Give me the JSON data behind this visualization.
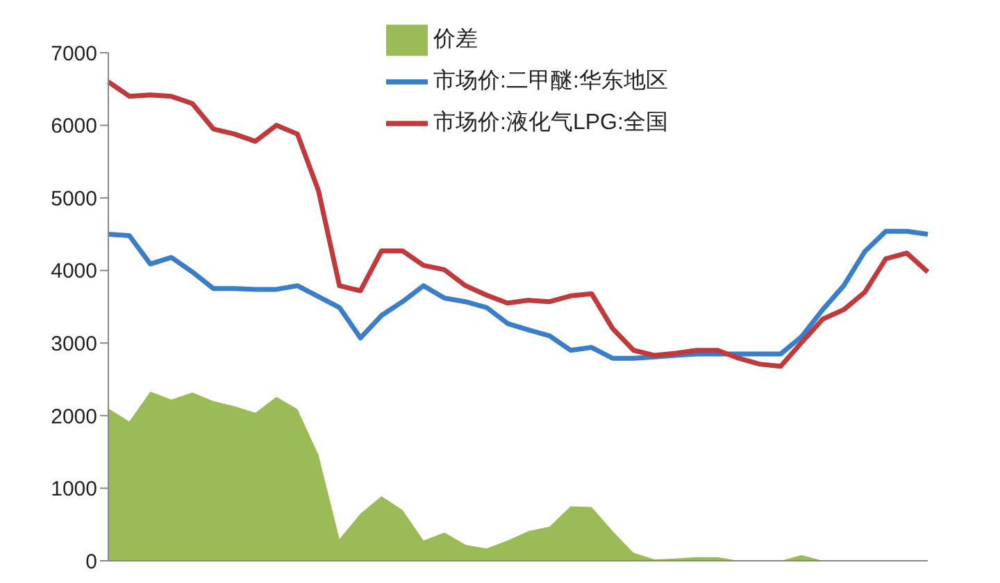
{
  "chart_data": {
    "type": "line",
    "categories": [
      null,
      null,
      null,
      null,
      null,
      null,
      null,
      null,
      null,
      null,
      null,
      null,
      null,
      null,
      null,
      null,
      null,
      null,
      null,
      null,
      null,
      null,
      null,
      null,
      null,
      null,
      null,
      null,
      null,
      null,
      null,
      null,
      null,
      null,
      null,
      null,
      null,
      null,
      null,
      null
    ],
    "series": [
      {
        "name": "价差",
        "type": "area",
        "color": "#9bbb59",
        "values": [
          2100,
          1920,
          2330,
          2220,
          2320,
          2200,
          2130,
          2040,
          2260,
          2090,
          1460,
          300,
          650,
          890,
          700,
          280,
          390,
          220,
          170,
          280,
          410,
          470,
          750,
          740,
          410,
          110,
          20,
          30,
          50,
          50,
          0,
          0,
          0,
          80,
          0,
          0,
          0,
          0,
          0,
          0
        ]
      },
      {
        "name": "市场价:二甲醚:华东地区",
        "color": "#3a7dc9",
        "values": [
          4500,
          4480,
          4090,
          4180,
          3980,
          3750,
          3750,
          3740,
          3740,
          3790,
          3640,
          3490,
          3070,
          3380,
          3570,
          3790,
          3620,
          3570,
          3490,
          3270,
          3180,
          3100,
          2900,
          2940,
          2790,
          2790,
          2810,
          2830,
          2850,
          2850,
          2850,
          2850,
          2850,
          3090,
          3460,
          3790,
          4260,
          4540,
          4540,
          4500
        ]
      },
      {
        "name": "市场价:液化气LPG:全国",
        "color": "#c0393b",
        "values": [
          6600,
          6400,
          6420,
          6400,
          6300,
          5950,
          5880,
          5780,
          6000,
          5880,
          5100,
          3790,
          3720,
          4270,
          4270,
          4070,
          4010,
          3790,
          3660,
          3550,
          3590,
          3570,
          3650,
          3680,
          3200,
          2900,
          2830,
          2860,
          2900,
          2900,
          2790,
          2710,
          2680,
          3010,
          3330,
          3460,
          3700,
          4160,
          4240,
          3980
        ]
      }
    ],
    "ylim": [
      0,
      7000
    ],
    "yticks": [
      0,
      1000,
      2000,
      3000,
      4000,
      5000,
      6000,
      7000
    ],
    "grid": false,
    "legend": "top",
    "tick_labels": "y",
    "marker": "none"
  }
}
